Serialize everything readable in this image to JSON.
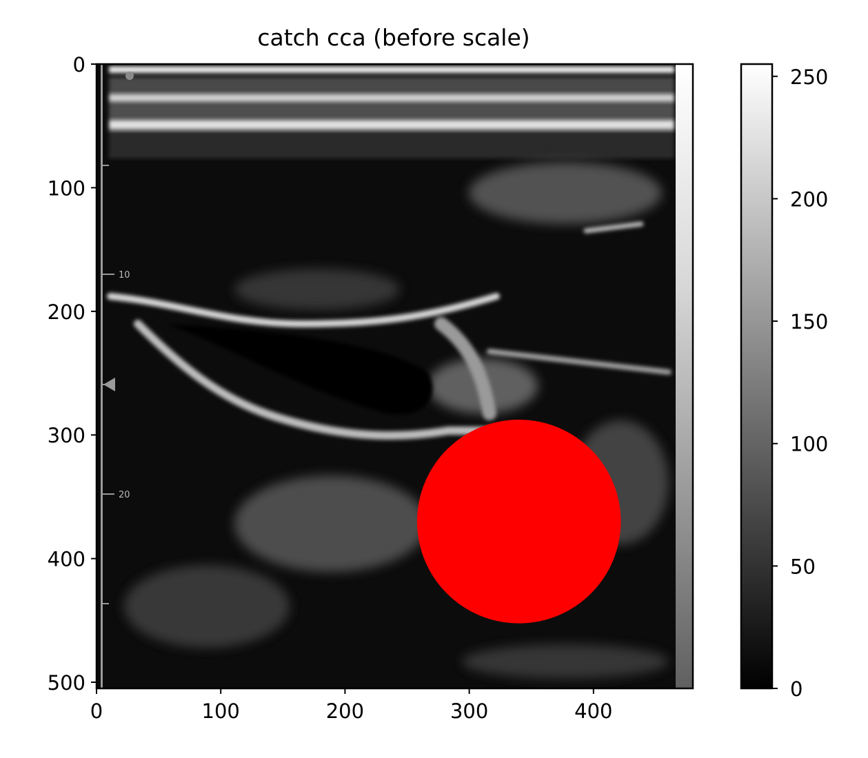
{
  "chart_data": {
    "type": "heatmap",
    "title": "catch cca (before scale)",
    "xlabel": "",
    "ylabel": "",
    "xlim": [
      0,
      480
    ],
    "ylim": [
      505,
      0
    ],
    "x_ticks": [
      0,
      100,
      200,
      300,
      400
    ],
    "y_ticks": [
      0,
      100,
      200,
      300,
      400,
      500
    ],
    "colormap": "gray",
    "colorbar": {
      "range": [
        0,
        255
      ],
      "ticks": [
        0,
        50,
        100,
        150,
        200,
        250
      ]
    },
    "image": {
      "description_hidden": true,
      "inner_ruler_labels": [
        "10",
        "20"
      ]
    },
    "annotations": [
      {
        "type": "circle",
        "cx": 340,
        "cy": 370,
        "r": 82,
        "color": "#ff0000"
      }
    ]
  }
}
